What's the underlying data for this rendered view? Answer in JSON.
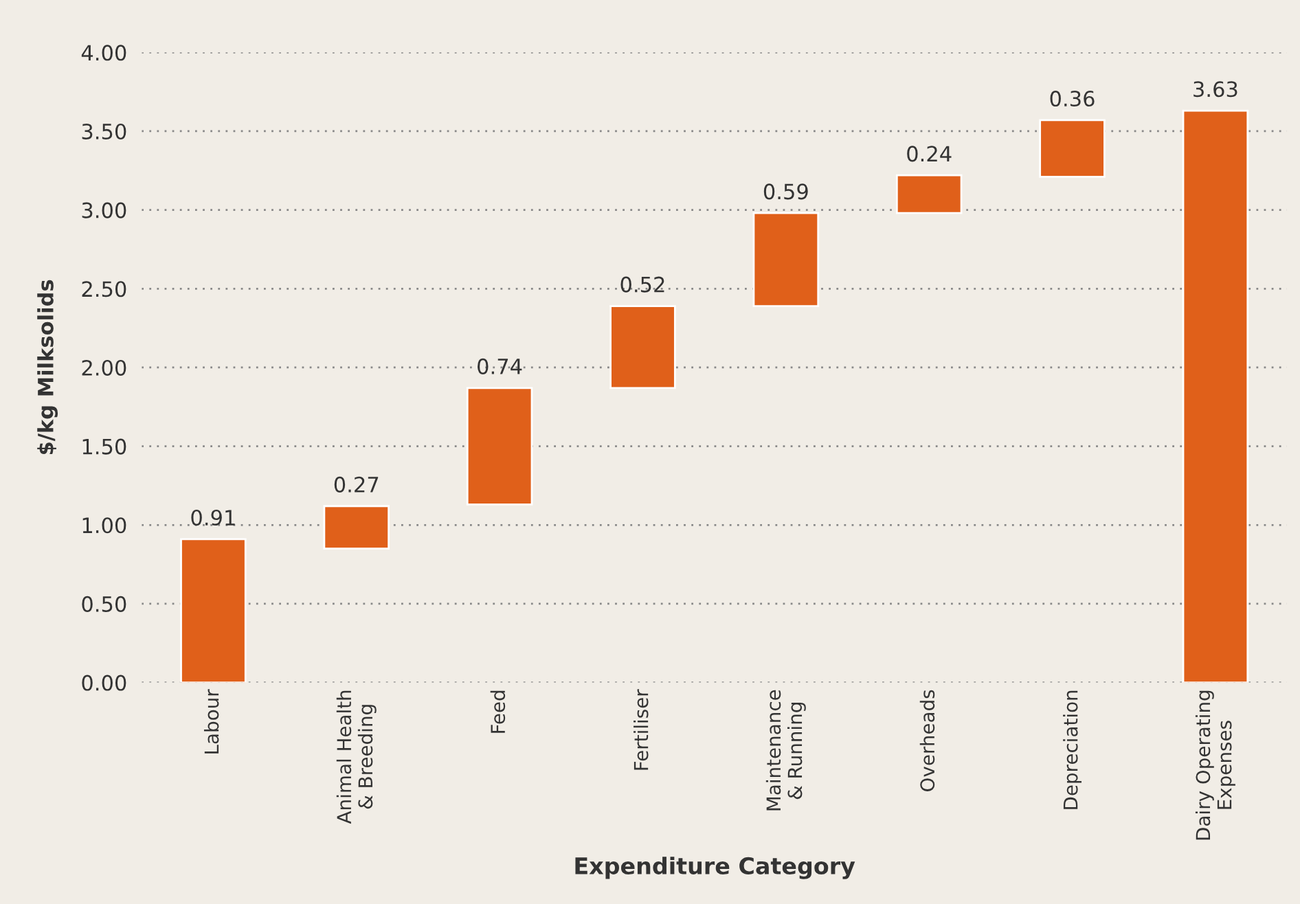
{
  "chart_data": {
    "type": "bar",
    "xlabel": "Expenditure Category",
    "ylabel": "$/kg Milksolids",
    "categories": [
      "Labour",
      "Animal Health\n& Breeding",
      "Feed",
      "Fertiliser",
      "Maintenance\n& Running",
      "Overheads",
      "Depreciation",
      "Dairy Operating\nExpenses"
    ],
    "values": [
      0.91,
      0.27,
      0.74,
      0.52,
      0.59,
      0.24,
      0.36,
      3.63
    ],
    "base": [
      0,
      0.85,
      1.13,
      1.87,
      2.39,
      2.98,
      3.21,
      0
    ],
    "color": "#e0601a",
    "ylim": [
      0,
      4
    ],
    "yticks": [
      {
        "value": 0,
        "label": "0.00"
      },
      {
        "value": 0.5,
        "label": "0.50"
      },
      {
        "value": 1,
        "label": "1.00"
      },
      {
        "value": 1.5,
        "label": "1.50"
      },
      {
        "value": 2,
        "label": "2.00"
      },
      {
        "value": 2.5,
        "label": "2.50"
      },
      {
        "value": 3,
        "label": "3.00"
      },
      {
        "value": 3.5,
        "label": "3.50"
      },
      {
        "value": 4,
        "label": "4.00"
      }
    ],
    "grid": "y",
    "data_labels": true,
    "legend": false
  }
}
